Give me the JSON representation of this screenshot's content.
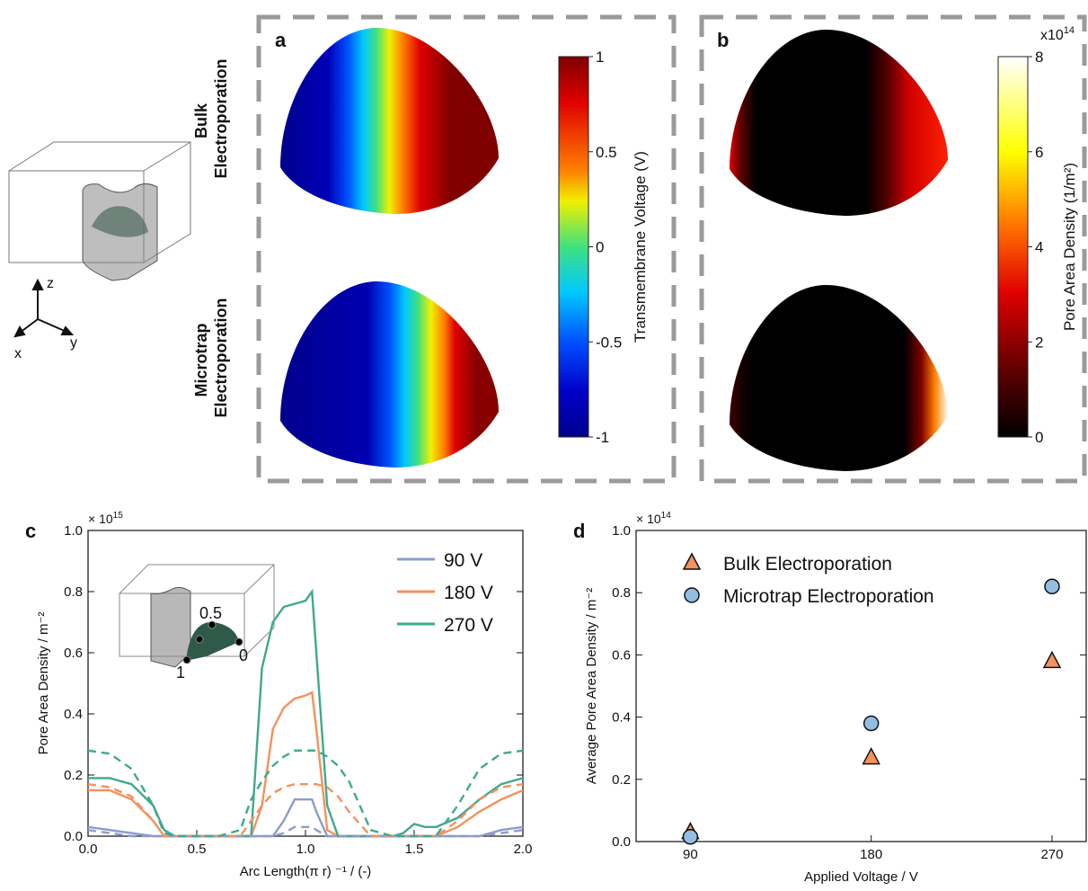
{
  "sketch": {
    "axis_labels": [
      "z",
      "y",
      "x"
    ]
  },
  "row_labels": [
    [
      "Bulk",
      "Electroporation"
    ],
    [
      "Microtrap",
      "Electroporation"
    ]
  ],
  "panel_a": {
    "label": "a",
    "colorbar": {
      "label": "Transmembrane Voltage (V)",
      "lim": [
        -1,
        1
      ],
      "ticks": [
        -1,
        -0.5,
        0,
        0.5,
        1
      ]
    }
  },
  "panel_b": {
    "label": "b",
    "colorbar": {
      "label": "Pore Area Density (1/m²)",
      "scale_base": "x10",
      "scale_exponent": "14",
      "lim": [
        0,
        8
      ],
      "ticks": [
        0,
        2,
        4,
        6,
        8
      ]
    }
  },
  "chart_data": [
    {
      "type": "line",
      "label": "c",
      "scale_base": "× 10",
      "scale_exponent": "15",
      "xlabel": "Arc Length(π r) ⁻¹ / (-)",
      "ylabel": "Pore Area Density / m⁻²",
      "x": [
        0,
        0.1,
        0.2,
        0.3,
        0.35,
        0.4,
        0.5,
        0.6,
        0.7,
        0.75,
        0.8,
        0.85,
        0.9,
        0.95,
        1.0,
        1.03,
        1.05,
        1.1,
        1.15,
        1.2,
        1.3,
        1.4,
        1.45,
        1.5,
        1.55,
        1.6,
        1.7,
        1.8,
        1.9,
        2.0
      ],
      "series": [
        {
          "name": "90 V",
          "color": "#8d9ccb",
          "values": [
            0.03,
            0.02,
            0.01,
            0,
            0,
            0,
            0,
            0,
            0,
            0,
            0,
            0,
            0.05,
            0.12,
            0.12,
            0.12,
            0.08,
            0,
            0,
            0,
            0,
            0,
            0,
            0,
            0,
            0,
            0,
            0,
            0.02,
            0.03
          ]
        },
        {
          "name": "180 V",
          "color": "#f4915e",
          "values": [
            0.15,
            0.15,
            0.12,
            0.05,
            0,
            0,
            0,
            0,
            0,
            0,
            0.1,
            0.35,
            0.42,
            0.45,
            0.46,
            0.47,
            0.35,
            0.02,
            0,
            0,
            0,
            0,
            0,
            0,
            0,
            0,
            0.03,
            0.08,
            0.12,
            0.15
          ]
        },
        {
          "name": "270 V",
          "color": "#3fa98c",
          "values": [
            0.19,
            0.19,
            0.17,
            0.1,
            0.02,
            0,
            0,
            0,
            0,
            0,
            0.55,
            0.7,
            0.75,
            0.76,
            0.77,
            0.8,
            0.6,
            0.1,
            0,
            0,
            0,
            0,
            0.01,
            0.04,
            0.03,
            0.03,
            0.06,
            0.12,
            0.17,
            0.19
          ]
        },
        {
          "color": "#8d9ccb",
          "dashed": true,
          "values": [
            0.02,
            0.01,
            0,
            0,
            0,
            0,
            0,
            0,
            0,
            0,
            0,
            0,
            0.01,
            0.03,
            0.03,
            0.03,
            0.02,
            0,
            0,
            0,
            0,
            0,
            0,
            0,
            0,
            0,
            0,
            0,
            0.01,
            0.02
          ]
        },
        {
          "color": "#f4915e",
          "dashed": true,
          "values": [
            0.17,
            0.16,
            0.13,
            0.05,
            0,
            0,
            0,
            0,
            0,
            0.05,
            0.1,
            0.14,
            0.16,
            0.17,
            0.17,
            0.17,
            0.17,
            0.16,
            0.13,
            0.08,
            0,
            0,
            0,
            0,
            0,
            0,
            0.05,
            0.12,
            0.16,
            0.17
          ]
        },
        {
          "color": "#3fa98c",
          "dashed": true,
          "values": [
            0.28,
            0.27,
            0.22,
            0.1,
            0.01,
            0,
            0,
            0,
            0.02,
            0.12,
            0.18,
            0.23,
            0.26,
            0.28,
            0.28,
            0.28,
            0.28,
            0.26,
            0.23,
            0.18,
            0.02,
            0,
            0,
            0,
            0,
            0,
            0.1,
            0.22,
            0.27,
            0.28
          ]
        }
      ],
      "xlim": [
        0,
        2
      ],
      "ylim": [
        0,
        1
      ],
      "xticks": [
        {
          "value": 0,
          "label": "0.0"
        },
        0.5,
        {
          "value": 1,
          "label": "1.0"
        },
        1.5,
        {
          "value": 2,
          "label": "2.0"
        }
      ],
      "yticks": [
        {
          "value": 0,
          "label": "0.0"
        },
        0.2,
        0.4,
        0.6,
        0.8,
        {
          "value": 1,
          "label": "1.0"
        }
      ],
      "legend": "upper right",
      "inset_labels": [
        "0.5",
        "0",
        "1"
      ]
    },
    {
      "type": "scatter",
      "label": "d",
      "scale_base": "× 10",
      "scale_exponent": "14",
      "xlabel": "Applied Voltage / V",
      "ylabel": "Average Pore Area Density / m⁻²",
      "x": [
        90,
        180,
        270
      ],
      "series": [
        {
          "name": "Bulk Electroporation",
          "color": "#f4915e",
          "marker": "triangle",
          "values": [
            0.03,
            0.27,
            0.58
          ]
        },
        {
          "name": "Microtrap Electroporation",
          "color": "#93bde3",
          "marker": "circle",
          "values": [
            0.015,
            0.38,
            0.82
          ]
        }
      ],
      "xlim": [
        63,
        287
      ],
      "ylim": [
        0,
        1
      ],
      "xticks": [
        90,
        180,
        270
      ],
      "yticks": [
        {
          "value": 0,
          "label": "0.0"
        },
        0.2,
        0.4,
        0.6,
        0.8,
        {
          "value": 1,
          "label": "1.0"
        }
      ],
      "legend": "upper left"
    }
  ]
}
